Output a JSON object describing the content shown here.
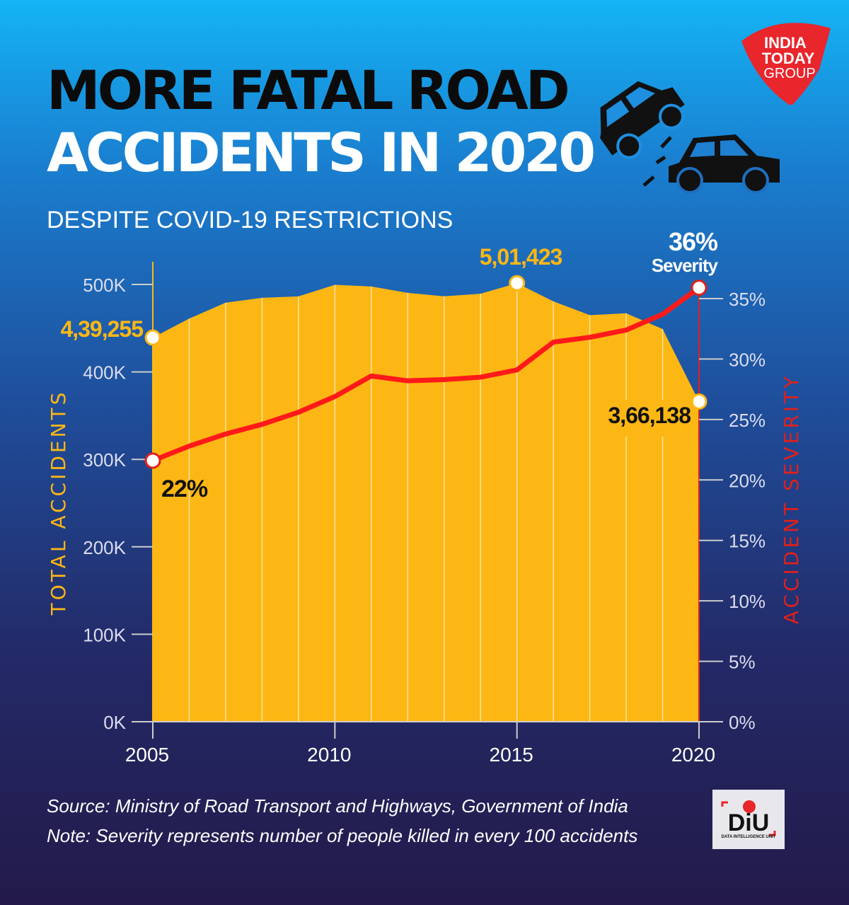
{
  "title_line1": "MORE FATAL ROAD",
  "title_line2": "ACCIDENTS IN 2020",
  "subtitle": "DESPITE COVID-19 RESTRICTIONS",
  "logo_text": "INDIA TODAY GROUP",
  "diu_logo_text": "DiU DATA INTELLIGENCE UNIT",
  "source": "Source: Ministry of Road Transport and Highways, Government of India",
  "note": "Note: Severity represents number of people killed in every 100 accidents",
  "colors": {
    "area": "#fdb714",
    "severity_line": "#ff1a1a",
    "left_axis_label": "#fdb714",
    "right_axis_label": "#e0201c"
  },
  "chart_data": {
    "type": "area+line",
    "x": [
      2005,
      2006,
      2007,
      2008,
      2009,
      2010,
      2011,
      2012,
      2013,
      2014,
      2015,
      2016,
      2017,
      2018,
      2019,
      2020
    ],
    "x_ticks": [
      "2005",
      "2010",
      "2015",
      "2020"
    ],
    "series": [
      {
        "name": "TOTAL ACCIDENTS",
        "axis": "left",
        "type": "area",
        "values": [
          439255,
          460920,
          479216,
          484704,
          486384,
          499628,
          497686,
          490383,
          486476,
          489400,
          501423,
          480652,
          464910,
          467044,
          449002,
          366138
        ]
      },
      {
        "name": "ACCIDENT SEVERITY",
        "axis": "right",
        "type": "line",
        "values": [
          21.6,
          22.8,
          23.8,
          24.6,
          25.6,
          26.9,
          28.6,
          28.2,
          28.3,
          28.5,
          29.1,
          31.4,
          31.8,
          32.4,
          33.7,
          35.9
        ]
      }
    ],
    "ylabel_left": "TOTAL ACCIDENTS",
    "ylim_left": [
      0,
      500000
    ],
    "yticks_left": [
      "0K",
      "100K",
      "200K",
      "300K",
      "400K",
      "500K"
    ],
    "ylabel_right": "ACCIDENT SEVERITY",
    "ylim_right": [
      0,
      35
    ],
    "yticks_right": [
      "0%",
      "5%",
      "10%",
      "15%",
      "20%",
      "25%",
      "30%",
      "35%"
    ],
    "annotations": [
      {
        "text": "4,39,255",
        "x": 2005,
        "series": "TOTAL ACCIDENTS"
      },
      {
        "text": "5,01,423",
        "x": 2015,
        "series": "TOTAL ACCIDENTS"
      },
      {
        "text": "3,66,138",
        "x": 2020,
        "series": "TOTAL ACCIDENTS"
      },
      {
        "text": "22%",
        "x": 2005,
        "series": "ACCIDENT SEVERITY"
      },
      {
        "text": "36%",
        "sub": "Severity",
        "x": 2020,
        "series": "ACCIDENT SEVERITY"
      }
    ],
    "grid": false
  }
}
